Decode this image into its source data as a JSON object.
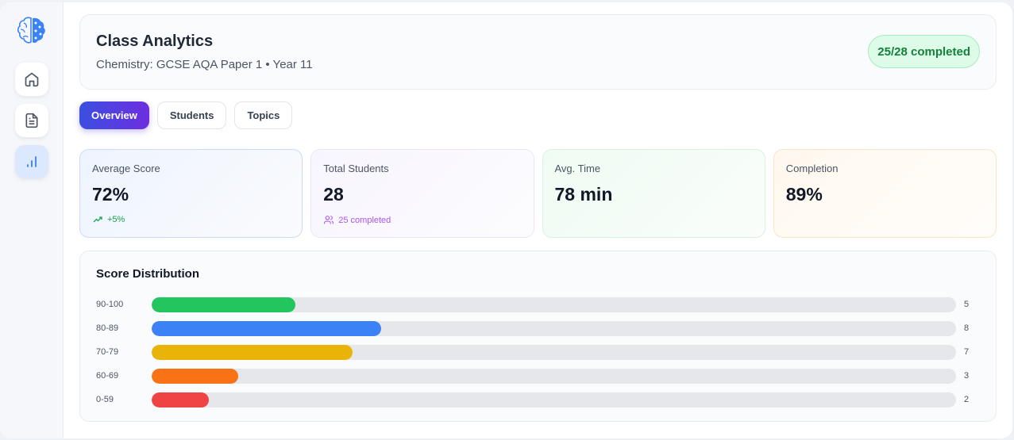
{
  "sidebar": {
    "items": [
      {
        "name": "home",
        "icon": "home-icon"
      },
      {
        "name": "documents",
        "icon": "document-icon"
      },
      {
        "name": "analytics",
        "icon": "bar-chart-icon",
        "active": true
      }
    ]
  },
  "header": {
    "title": "Class Analytics",
    "subtitle": "Chemistry: GCSE AQA Paper 1 • Year 11",
    "badge": "25/28 completed"
  },
  "tabs": [
    {
      "label": "Overview",
      "active": true
    },
    {
      "label": "Students"
    },
    {
      "label": "Topics"
    }
  ],
  "stats": [
    {
      "label": "Average Score",
      "value": "72%",
      "sub": "+5%",
      "sub_icon": "trending-up-icon",
      "sub_color": "#16a34a"
    },
    {
      "label": "Total Students",
      "value": "28",
      "sub": "25 completed",
      "sub_icon": "users-icon",
      "sub_color": "#a855f7"
    },
    {
      "label": "Avg. Time",
      "value": "78 min"
    },
    {
      "label": "Completion",
      "value": "89%"
    }
  ],
  "distribution": {
    "title": "Score Distribution",
    "total": 28,
    "rows": [
      {
        "range": "90-100",
        "count": 5,
        "color": "#22c55e"
      },
      {
        "range": "80-89",
        "count": 8,
        "color": "#3b82f6"
      },
      {
        "range": "70-79",
        "count": 7,
        "color": "#eab308"
      },
      {
        "range": "60-69",
        "count": 3,
        "color": "#f97316"
      },
      {
        "range": "0-59",
        "count": 2,
        "color": "#ef4444"
      }
    ]
  }
}
